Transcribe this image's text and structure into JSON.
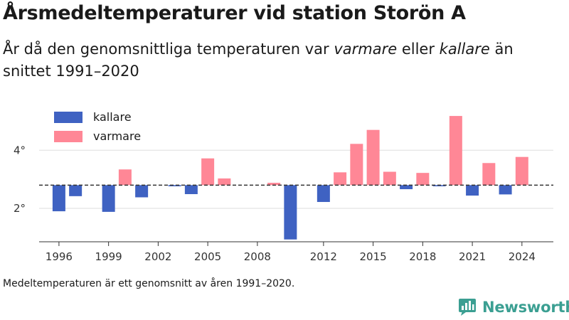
{
  "title": "Årsmedeltemperaturer vid station Storön A",
  "subtitle": {
    "part1": "År då den genomsnittliga temperaturen var ",
    "warm_word": "varmare",
    "part2": " eller ",
    "cold_word": "kallare",
    "part3": " än snittet 1991–2020"
  },
  "legend": {
    "cold_label": "kallare",
    "warm_label": "varmare"
  },
  "note": "Medeltemperaturen är ett genomsnitt av åren 1991–2020.",
  "brand": {
    "name": "Newsworthy"
  },
  "colors": {
    "cold": "#3f62c2",
    "warm": "#ff8796",
    "baseline": "#333333",
    "grid": "#dedede",
    "brand": "#3b9f92"
  },
  "chart_data": {
    "type": "bar",
    "title": "Årsmedeltemperaturer vid station Storön A",
    "baseline": 2.8,
    "ylim": [
      0.85,
      5.5
    ],
    "yticks": [
      2,
      4
    ],
    "ytick_labels": [
      "2°",
      "4°"
    ],
    "xticks": [
      1996,
      1999,
      2002,
      2005,
      2008,
      2012,
      2015,
      2018,
      2021,
      2024
    ],
    "x": [
      1996,
      1997,
      1999,
      2000,
      2001,
      2003,
      2004,
      2005,
      2006,
      2009,
      2010,
      2012,
      2013,
      2014,
      2015,
      2016,
      2017,
      2018,
      2019,
      2020,
      2021,
      2022,
      2023,
      2024
    ],
    "values": [
      1.9,
      2.42,
      1.88,
      3.34,
      2.38,
      2.76,
      2.49,
      3.72,
      3.03,
      2.88,
      0.93,
      2.22,
      3.24,
      4.22,
      4.7,
      3.26,
      2.66,
      3.22,
      2.76,
      5.18,
      2.44,
      3.56,
      2.48,
      3.77
    ],
    "legend": [
      "kallare",
      "varmare"
    ],
    "legend_position": "top-left",
    "grid": true
  }
}
